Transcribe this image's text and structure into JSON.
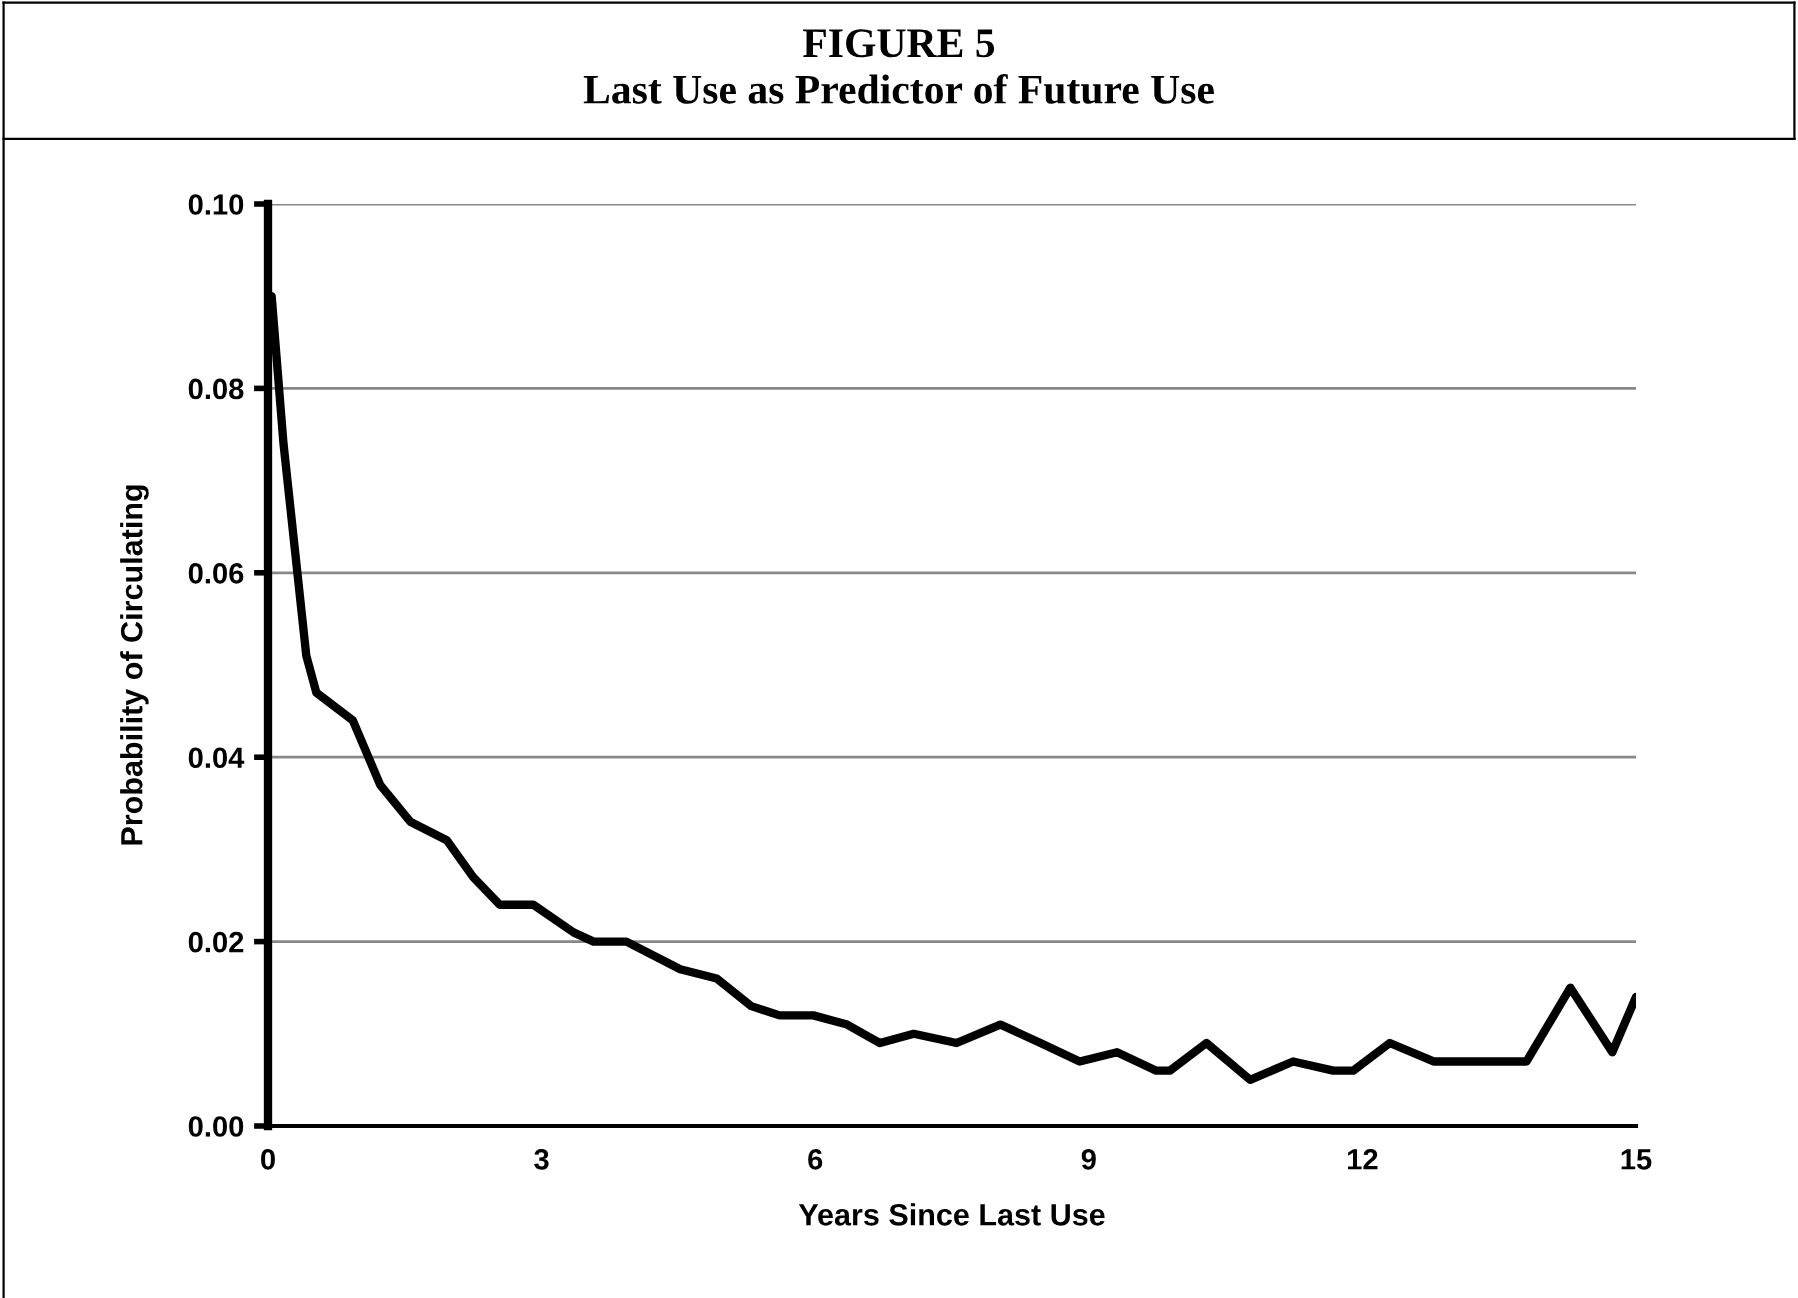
{
  "chart_data": {
    "type": "line",
    "title": "FIGURE 5\nLast Use as Predictor of Future Use",
    "xlabel": "Years Since Last Use",
    "ylabel": "Probability of Circulating",
    "series": [
      {
        "color": "#000000",
        "x": [
          0.04,
          0.17,
          0.42,
          0.53,
          0.93,
          1.23,
          1.56,
          1.96,
          2.25,
          2.54,
          2.91,
          3.35,
          3.57,
          3.93,
          4.52,
          4.92,
          5.3,
          5.61,
          5.98,
          6.35,
          6.71,
          7.08,
          7.55,
          8.03,
          8.47,
          8.9,
          9.31,
          9.74,
          9.89,
          10.29,
          10.77,
          11.24,
          11.68,
          11.9,
          12.3,
          12.78,
          13.03,
          13.32,
          13.43,
          13.8,
          14.28,
          14.74,
          15.0
        ],
        "values": [
          0.09,
          0.074,
          0.051,
          0.047,
          0.044,
          0.037,
          0.033,
          0.031,
          0.027,
          0.024,
          0.024,
          0.021,
          0.02,
          0.02,
          0.017,
          0.016,
          0.013,
          0.012,
          0.012,
          0.011,
          0.009,
          0.01,
          0.009,
          0.011,
          0.009,
          0.007,
          0.008,
          0.006,
          0.006,
          0.009,
          0.005,
          0.007,
          0.006,
          0.006,
          0.009,
          0.007,
          0.007,
          0.007,
          0.007,
          0.007,
          0.015,
          0.008,
          0.014
        ]
      }
    ],
    "xlim": [
      0,
      15
    ],
    "xticks": [
      0,
      3,
      6,
      9,
      12,
      15
    ],
    "ylim": [
      0,
      0.1
    ],
    "yticks": [
      {
        "value": 0,
        "label": "0.00"
      },
      {
        "value": 0.02,
        "label": "0.02"
      },
      {
        "value": 0.04,
        "label": "0.04"
      },
      {
        "value": 0.06,
        "label": "0.06"
      },
      {
        "value": 0.08,
        "label": "0.08"
      },
      {
        "value": 0.1,
        "label": "0.10"
      }
    ],
    "grid": "y",
    "marker": "none",
    "line_style": "solid",
    "legend": false
  }
}
